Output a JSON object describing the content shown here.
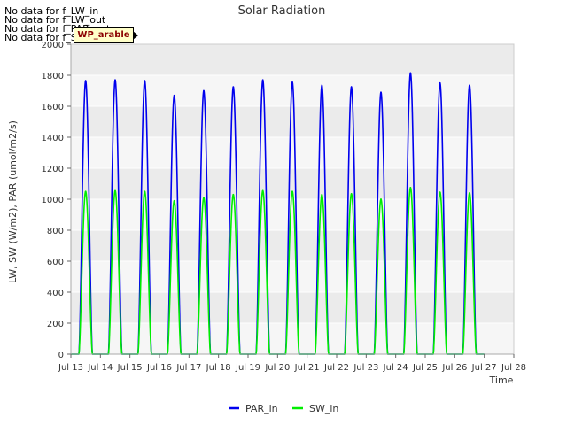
{
  "chart_data": {
    "type": "line",
    "title": "Solar Radiation",
    "xlabel": "Time",
    "ylabel": "LW, SW (W/m2), PAR (umol/m2/s)",
    "ylim": [
      0,
      2000
    ],
    "xlim": [
      13,
      28
    ],
    "yticks": [
      0,
      200,
      400,
      600,
      800,
      1000,
      1200,
      1400,
      1600,
      1800,
      2000
    ],
    "xticks": [
      {
        "value": 13,
        "label": "Jul 13"
      },
      {
        "value": 14,
        "label": "Jul 14"
      },
      {
        "value": 15,
        "label": "Jul 15"
      },
      {
        "value": 16,
        "label": "Jul 16"
      },
      {
        "value": 17,
        "label": "Jul 17"
      },
      {
        "value": 18,
        "label": "Jul 18"
      },
      {
        "value": 19,
        "label": "Jul 19"
      },
      {
        "value": 20,
        "label": "Jul 20"
      },
      {
        "value": 21,
        "label": "Jul 21"
      },
      {
        "value": 22,
        "label": "Jul 22"
      },
      {
        "value": 23,
        "label": "Jul 23"
      },
      {
        "value": 24,
        "label": "Jul 24"
      },
      {
        "value": 25,
        "label": "Jul 25"
      },
      {
        "value": 26,
        "label": "Jul 26"
      },
      {
        "value": 27,
        "label": "Jul 27"
      },
      {
        "value": 28,
        "label": "Jul 28"
      }
    ],
    "series": [
      {
        "name": "PAR_in",
        "color": "#0000ee",
        "daily_peaks": [
          {
            "day": 13.5,
            "peak": 1765
          },
          {
            "day": 14.5,
            "peak": 1770
          },
          {
            "day": 15.5,
            "peak": 1765
          },
          {
            "day": 16.5,
            "peak": 1670
          },
          {
            "day": 17.5,
            "peak": 1700
          },
          {
            "day": 18.5,
            "peak": 1725
          },
          {
            "day": 19.5,
            "peak": 1770
          },
          {
            "day": 20.5,
            "peak": 1755
          },
          {
            "day": 21.5,
            "peak": 1735
          },
          {
            "day": 22.5,
            "peak": 1725
          },
          {
            "day": 23.5,
            "peak": 1690
          },
          {
            "day": 24.5,
            "peak": 1815
          },
          {
            "day": 25.5,
            "peak": 1750
          },
          {
            "day": 26.5,
            "peak": 1735
          }
        ]
      },
      {
        "name": "SW_in",
        "color": "#00ee00",
        "daily_peaks": [
          {
            "day": 13.5,
            "peak": 1050
          },
          {
            "day": 14.5,
            "peak": 1055
          },
          {
            "day": 15.5,
            "peak": 1050
          },
          {
            "day": 16.5,
            "peak": 990
          },
          {
            "day": 17.5,
            "peak": 1010
          },
          {
            "day": 18.5,
            "peak": 1030
          },
          {
            "day": 19.5,
            "peak": 1055
          },
          {
            "day": 20.5,
            "peak": 1050
          },
          {
            "day": 21.5,
            "peak": 1030
          },
          {
            "day": 22.5,
            "peak": 1035
          },
          {
            "day": 23.5,
            "peak": 1000
          },
          {
            "day": 24.5,
            "peak": 1075
          },
          {
            "day": 25.5,
            "peak": 1045
          },
          {
            "day": 26.5,
            "peak": 1040
          }
        ]
      }
    ],
    "no_data_notes": [
      "No data for f_LW_in",
      "No data for f_LW_out",
      "No data for f_PAR_out",
      "No data for f_SW_out"
    ],
    "badge_label": "WP_arable",
    "legend": [
      {
        "name": "PAR_in",
        "color": "#0000ee"
      },
      {
        "name": "SW_in",
        "color": "#00ee00"
      }
    ],
    "legend_position": "bottom-center",
    "grid": true
  }
}
